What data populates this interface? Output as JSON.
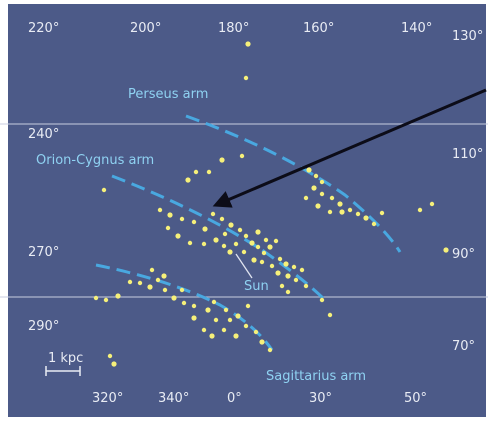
{
  "colors": {
    "background": "#4c5a88",
    "star": "#f6f07a",
    "arm": "#49a8e0",
    "arm_label": "#8fd2f2",
    "text": "#e9ecf4"
  },
  "top_longitudes": [
    "220°",
    "200°",
    "180°",
    "160°",
    "140°"
  ],
  "left_longitudes": [
    "240°",
    "270°",
    "290°"
  ],
  "right_longitudes": [
    "130°",
    "110°",
    "90°",
    "70°"
  ],
  "bottom_longitudes": [
    "320°",
    "340°",
    "0°",
    "30°",
    "50°"
  ],
  "arms": {
    "perseus": "Perseus arm",
    "orion": "Orion-Cygnus arm",
    "sagittarius": "Sagittarius arm"
  },
  "sun_label": "Sun",
  "scale_label": "1 kpc",
  "arrow_icon": "arrow-pointer"
}
